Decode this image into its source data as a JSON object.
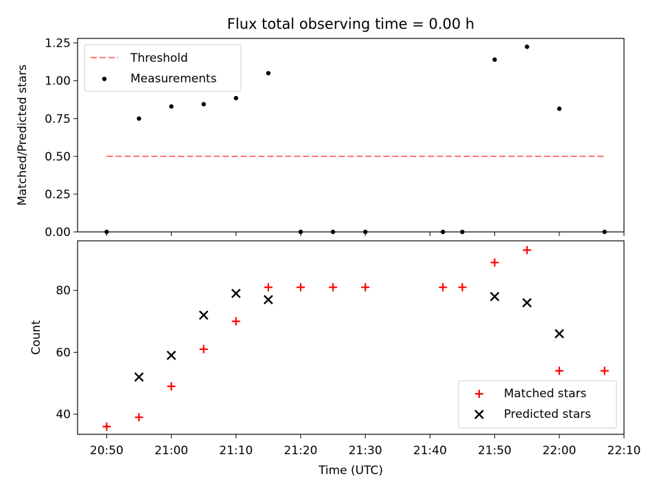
{
  "figure": {
    "title": "Flux total observing time = 0.00 h"
  },
  "chart_data": [
    {
      "type": "scatter",
      "title": "Flux total observing time = 0.00 h",
      "xlabel": "",
      "ylabel": "Matched/Predicted stars",
      "x_range": [
        "20:45",
        "22:10"
      ],
      "ylim": [
        0,
        1.28
      ],
      "yticks": [
        0.0,
        0.25,
        0.5,
        0.75,
        1.0,
        1.25
      ],
      "ytick_labels": [
        "0.00",
        "0.25",
        "0.50",
        "0.75",
        "1.00",
        "1.25"
      ],
      "legend_position": "top-left",
      "series": [
        {
          "name": "Threshold",
          "kind": "dashed-line",
          "color": "#ff7f7f",
          "x": [
            "20:50",
            "22:07"
          ],
          "y": [
            0.5,
            0.5
          ]
        },
        {
          "name": "Measurements",
          "kind": "dot",
          "color": "#000000",
          "x": [
            "20:50",
            "20:55",
            "21:00",
            "21:05",
            "21:10",
            "21:15",
            "21:20",
            "21:25",
            "21:30",
            "21:42",
            "21:45",
            "21:50",
            "21:55",
            "22:00",
            "22:07"
          ],
          "y": [
            0.0,
            0.75,
            0.83,
            0.845,
            0.885,
            1.05,
            0.0,
            0.0,
            0.0,
            0.0,
            0.0,
            1.14,
            1.225,
            0.815,
            0.0
          ]
        }
      ]
    },
    {
      "type": "scatter",
      "title": "",
      "xlabel": "Time (UTC)",
      "ylabel": "Count",
      "x_range": [
        "20:45",
        "22:10"
      ],
      "xticks": [
        "20:50",
        "21:00",
        "21:10",
        "21:20",
        "21:30",
        "21:40",
        "21:50",
        "22:00",
        "22:10"
      ],
      "ylim": [
        33.5,
        96
      ],
      "yticks": [
        40,
        60,
        80
      ],
      "ytick_labels": [
        "40",
        "60",
        "80"
      ],
      "legend_position": "bottom-right",
      "series": [
        {
          "name": "Matched stars",
          "kind": "plus",
          "color": "#ff0000",
          "x": [
            "20:50",
            "20:55",
            "21:00",
            "21:05",
            "21:10",
            "21:15",
            "21:20",
            "21:25",
            "21:30",
            "21:42",
            "21:45",
            "21:50",
            "21:55",
            "22:00",
            "22:07"
          ],
          "y": [
            36,
            39,
            49,
            61,
            70,
            81,
            81,
            81,
            81,
            81,
            81,
            89,
            93,
            54,
            54
          ]
        },
        {
          "name": "Predicted stars",
          "kind": "cross",
          "color": "#000000",
          "x": [
            "20:55",
            "21:00",
            "21:05",
            "21:10",
            "21:15",
            "21:50",
            "21:55",
            "22:00"
          ],
          "y": [
            52,
            59,
            72,
            79,
            77,
            78,
            76,
            66
          ]
        }
      ]
    }
  ]
}
